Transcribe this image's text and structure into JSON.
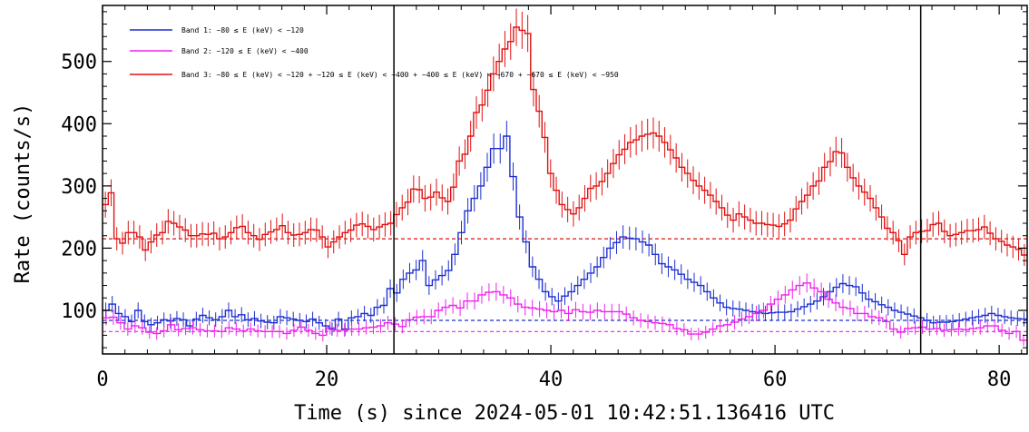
{
  "chart_data": {
    "type": "line",
    "xlabel": "Time (s) since 2024-05-01 10:42:51.136416 UTC",
    "ylabel": "Rate (counts/s)",
    "xlim": [
      0,
      82.5
    ],
    "ylim": [
      30,
      590
    ],
    "xticks": [
      0,
      20,
      40,
      60,
      80
    ],
    "yticks": [
      100,
      200,
      300,
      400,
      500
    ],
    "vlines": [
      26,
      73
    ],
    "grid": false,
    "legend_position": "top-left",
    "bin_width_s": 0.5,
    "series": [
      {
        "name": "Band 1: ~80 ≤ E (keV) < ~120",
        "color": "#1f2fd0",
        "baseline": 84,
        "anchors": [
          [
            0,
            110
          ],
          [
            1,
            95
          ],
          [
            3,
            82
          ],
          [
            5,
            80
          ],
          [
            8,
            85
          ],
          [
            12,
            90
          ],
          [
            16,
            85
          ],
          [
            20,
            83
          ],
          [
            24,
            86
          ],
          [
            26,
            75
          ],
          [
            28,
            88
          ],
          [
            30,
            95
          ],
          [
            32,
            105
          ],
          [
            34,
            135
          ],
          [
            35,
            150
          ],
          [
            36,
            175
          ],
          [
            37,
            140
          ],
          [
            38,
            160
          ],
          [
            38.5,
            190
          ],
          [
            39,
            260
          ],
          [
            40,
            300
          ],
          [
            40.5,
            360
          ],
          [
            41,
            380
          ],
          [
            41.5,
            250
          ],
          [
            42,
            170
          ],
          [
            43,
            130
          ],
          [
            44,
            115
          ],
          [
            45,
            130
          ],
          [
            46,
            150
          ],
          [
            47,
            170
          ],
          [
            48,
            200
          ],
          [
            49,
            218
          ],
          [
            50,
            215
          ],
          [
            51,
            205
          ],
          [
            52,
            175
          ],
          [
            53,
            165
          ],
          [
            54,
            150
          ],
          [
            55,
            140
          ],
          [
            56,
            120
          ],
          [
            57,
            105
          ],
          [
            60,
            95
          ],
          [
            62,
            98
          ],
          [
            64,
            115
          ],
          [
            65,
            130
          ],
          [
            66,
            143
          ],
          [
            67,
            138
          ],
          [
            68,
            118
          ],
          [
            70,
            100
          ],
          [
            72,
            88
          ],
          [
            74,
            80
          ],
          [
            76,
            82
          ],
          [
            78,
            90
          ],
          [
            80,
            95
          ],
          [
            81,
            90
          ],
          [
            82.5,
            85
          ]
        ],
        "values": [
          100,
          110,
          95,
          90,
          82,
          100,
          82,
          77,
          80,
          85,
          83,
          87,
          85,
          75,
          86,
          92,
          88,
          85,
          90,
          100,
          90,
          93,
          85,
          87,
          83,
          81,
          80,
          90,
          88,
          86,
          84,
          82,
          86,
          80,
          75,
          70,
          86,
          70,
          88,
          90,
          95,
          92,
          105,
          108,
          135,
          128,
          150,
          160,
          165,
          180,
          140,
          149,
          156,
          164,
          190,
          225,
          260,
          280,
          300,
          330,
          360,
          360,
          380,
          315,
          250,
          210,
          170,
          150,
          130,
          122,
          115,
          123,
          130,
          140,
          150,
          160,
          170,
          185,
          200,
          209,
          218,
          216,
          215,
          210,
          205,
          190,
          175,
          170,
          165,
          158,
          150,
          145,
          140,
          130,
          120,
          112,
          105,
          103,
          102,
          100,
          98,
          97,
          95,
          96,
          97,
          97,
          98,
          102,
          106,
          110,
          115,
          122,
          130,
          137,
          143,
          140,
          138,
          128,
          118,
          114,
          109,
          105,
          100,
          97,
          94,
          91,
          88,
          84,
          80,
          81,
          81,
          82,
          84,
          86,
          88,
          90,
          92,
          95,
          92,
          90,
          88,
          87,
          86
        ]
      },
      {
        "name": "Band 2: ~120 ≤ E (keV) < ~400",
        "color": "#ee22ee",
        "baseline": 66,
        "anchors": [
          [
            0,
            88
          ],
          [
            2,
            70
          ],
          [
            4,
            65
          ],
          [
            6,
            72
          ],
          [
            10,
            68
          ],
          [
            14,
            70
          ],
          [
            18,
            66
          ],
          [
            22,
            68
          ],
          [
            26,
            60
          ],
          [
            28,
            68
          ],
          [
            30,
            72
          ],
          [
            32,
            78
          ],
          [
            35,
            90
          ],
          [
            37,
            100
          ],
          [
            39,
            115
          ],
          [
            40,
            125
          ],
          [
            41,
            130
          ],
          [
            42,
            120
          ],
          [
            43,
            105
          ],
          [
            45,
            98
          ],
          [
            47,
            95
          ],
          [
            49,
            100
          ],
          [
            50,
            98
          ],
          [
            52,
            90
          ],
          [
            54,
            82
          ],
          [
            56,
            75
          ],
          [
            58,
            62
          ],
          [
            60,
            70
          ],
          [
            62,
            80
          ],
          [
            63,
            95
          ],
          [
            64,
            110
          ],
          [
            65,
            130
          ],
          [
            66,
            140
          ],
          [
            67,
            132
          ],
          [
            68,
            112
          ],
          [
            70,
            95
          ],
          [
            72,
            80
          ],
          [
            73,
            65
          ],
          [
            74,
            72
          ],
          [
            76,
            68
          ],
          [
            78,
            70
          ],
          [
            80,
            72
          ],
          [
            81,
            65
          ],
          [
            82.5,
            50
          ]
        ],
        "values": [
          88,
          89,
          80,
          70,
          75,
          72,
          65,
          63,
          67,
          77,
          69,
          71,
          72,
          69,
          67,
          67,
          66,
          72,
          70,
          67,
          70,
          67,
          66,
          66,
          66,
          63,
          68,
          73,
          68,
          63,
          60,
          72,
          68,
          68,
          70,
          70,
          72,
          73,
          75,
          80,
          78,
          74,
          85,
          89,
          90,
          90,
          100,
          105,
          108,
          104,
          115,
          115,
          125,
          129,
          130,
          125,
          120,
          110,
          105,
          104,
          102,
          100,
          98,
          100,
          95,
          101,
          98,
          97,
          100,
          98,
          98,
          98,
          94,
          88,
          84,
          82,
          80,
          79,
          77,
          71,
          69,
          62,
          62,
          65,
          70,
          75,
          77,
          81,
          86,
          90,
          95,
          100,
          110,
          118,
          125,
          133,
          140,
          144,
          136,
          130,
          118,
          112,
          105,
          103,
          95,
          95,
          90,
          88,
          82,
          70,
          65,
          71,
          72,
          73,
          70,
          71,
          68,
          69,
          70,
          69,
          71,
          72,
          75,
          75,
          68,
          63,
          66,
          52
        ]
      },
      {
        "name": "Band 3: ~80 ≤ E (keV) < ~120 + ~120 ≤ E (keV) < ~400 + ~400 ≤ E (keV) < ~670 + ~670 ≤ E (keV) < ~950",
        "color": "#e01010",
        "baseline": 215,
        "anchors": [
          [
            0,
            270
          ],
          [
            1,
            215
          ],
          [
            2,
            225
          ],
          [
            4,
            210
          ],
          [
            6,
            240
          ],
          [
            8,
            220
          ],
          [
            10,
            225
          ],
          [
            12,
            215
          ],
          [
            14,
            235
          ],
          [
            16,
            220
          ],
          [
            18,
            230
          ],
          [
            20,
            225
          ],
          [
            22,
            230
          ],
          [
            24,
            218
          ],
          [
            26,
            210
          ],
          [
            28,
            240
          ],
          [
            30,
            230
          ],
          [
            32,
            240
          ],
          [
            33,
            265
          ],
          [
            34,
            295
          ],
          [
            35,
            280
          ],
          [
            36,
            290
          ],
          [
            37,
            275
          ],
          [
            38,
            340
          ],
          [
            38.5,
            380
          ],
          [
            39,
            430
          ],
          [
            39.5,
            480
          ],
          [
            40,
            520
          ],
          [
            40.5,
            555
          ],
          [
            41,
            545
          ],
          [
            41.5,
            420
          ],
          [
            42,
            320
          ],
          [
            43,
            270
          ],
          [
            44,
            255
          ],
          [
            45,
            290
          ],
          [
            46,
            310
          ],
          [
            47,
            335
          ],
          [
            48,
            370
          ],
          [
            49,
            380
          ],
          [
            50,
            385
          ],
          [
            51,
            360
          ],
          [
            52,
            345
          ],
          [
            53,
            320
          ],
          [
            54,
            300
          ],
          [
            55,
            285
          ],
          [
            56,
            265
          ],
          [
            58,
            250
          ],
          [
            60,
            240
          ],
          [
            62,
            235
          ],
          [
            64,
            275
          ],
          [
            65,
            305
          ],
          [
            66,
            330
          ],
          [
            67,
            355
          ],
          [
            68,
            330
          ],
          [
            69,
            300
          ],
          [
            70,
            280
          ],
          [
            71,
            250
          ],
          [
            72,
            225
          ],
          [
            73,
            190
          ],
          [
            74,
            225
          ],
          [
            76,
            240
          ],
          [
            78,
            220
          ],
          [
            80,
            235
          ],
          [
            81,
            215
          ],
          [
            82.5,
            200
          ]
        ],
        "values": [
          270,
          289,
          215,
          208,
          225,
          225,
          218,
          197,
          210,
          221,
          225,
          243,
          240,
          234,
          229,
          220,
          220,
          223,
          222,
          224,
          215,
          218,
          225,
          233,
          235,
          225,
          220,
          214,
          222,
          226,
          230,
          236,
          225,
          221,
          222,
          225,
          230,
          229,
          218,
          202,
          210,
          218,
          225,
          229,
          237,
          239,
          235,
          230,
          234,
          238,
          240,
          254,
          265,
          274,
          295,
          294,
          280,
          282,
          290,
          281,
          275,
          298,
          340,
          351,
          380,
          418,
          430,
          454,
          480,
          500,
          520,
          532,
          555,
          550,
          545,
          455,
          420,
          378,
          320,
          293,
          270,
          262,
          255,
          265,
          280,
          296,
          300,
          307,
          320,
          336,
          350,
          359,
          370,
          374,
          380,
          383,
          385,
          380,
          370,
          358,
          345,
          330,
          320,
          309,
          300,
          293,
          285,
          275,
          265,
          253,
          245,
          255,
          250,
          245,
          240,
          240,
          238,
          237,
          235,
          239,
          245,
          263,
          275,
          285,
          300,
          308,
          330,
          339,
          355,
          353,
          330,
          313,
          300,
          290,
          280,
          265,
          250,
          232,
          225,
          212,
          190,
          218,
          225,
          227,
          228,
          238,
          240,
          227,
          220,
          222,
          225,
          228,
          228,
          230,
          234,
          224,
          215,
          211,
          205,
          202,
          198,
          189
        ]
      }
    ]
  }
}
